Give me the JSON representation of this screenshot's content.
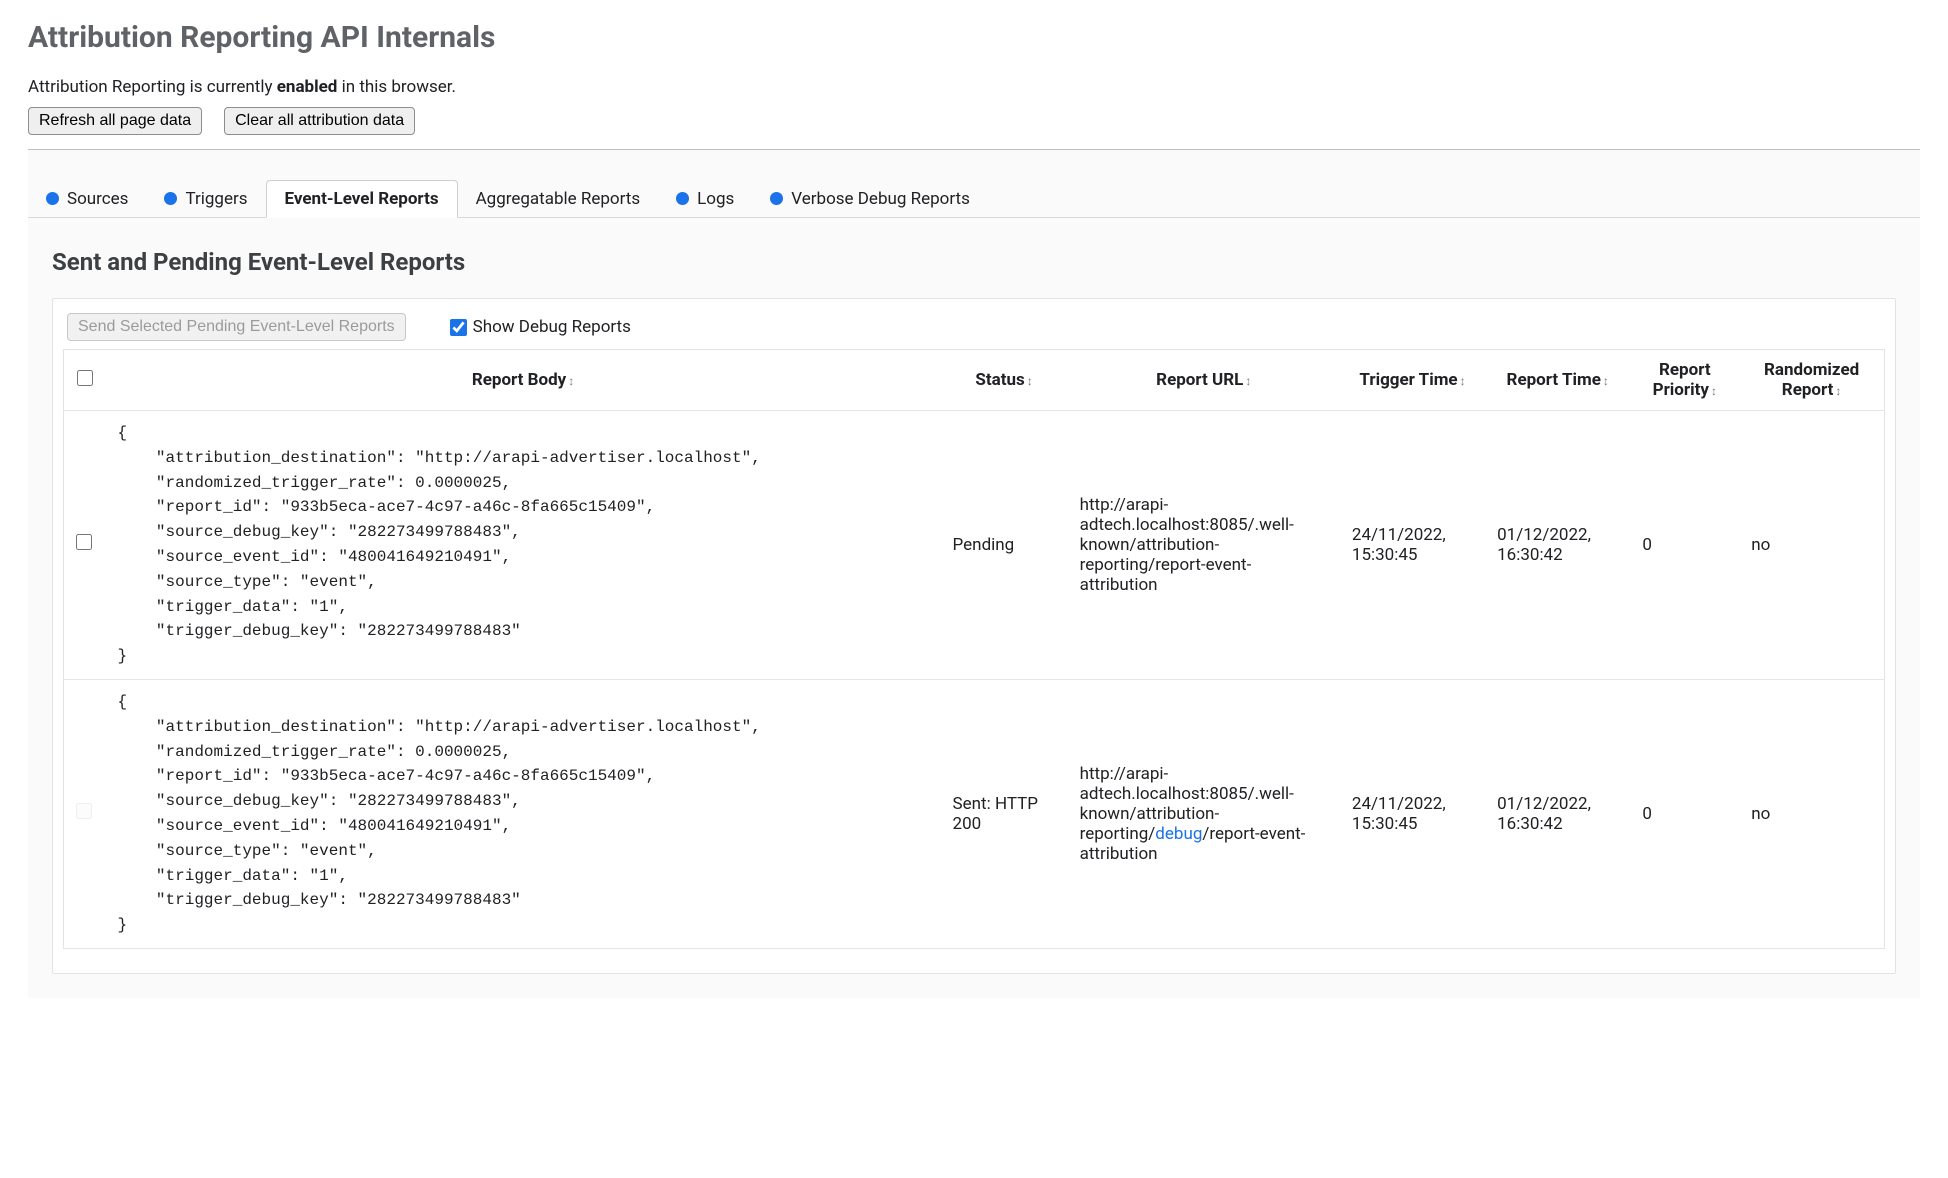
{
  "page": {
    "title": "Attribution Reporting API Internals",
    "status_prefix": "Attribution Reporting is currently ",
    "status_state": "enabled",
    "status_suffix": " in this browser.",
    "refresh_btn": "Refresh all page data",
    "clear_btn": "Clear all attribution data"
  },
  "tabs": {
    "sources": "Sources",
    "triggers": "Triggers",
    "event_reports": "Event-Level Reports",
    "agg_reports": "Aggregatable Reports",
    "logs": "Logs",
    "verbose": "Verbose Debug Reports"
  },
  "section_title": "Sent and Pending Event-Level Reports",
  "toolbar": {
    "send_selected": "Send Selected Pending Event-Level Reports",
    "show_debug": "Show Debug Reports"
  },
  "columns": {
    "body": "Report Body",
    "status": "Status",
    "url": "Report URL",
    "trigger_time": "Trigger Time",
    "report_time": "Report Time",
    "priority": "Report Priority",
    "randomized": "Randomized Report"
  },
  "report_body_text": "{\n    \"attribution_destination\": \"http://arapi-advertiser.localhost\",\n    \"randomized_trigger_rate\": 0.0000025,\n    \"report_id\": \"933b5eca-ace7-4c97-a46c-8fa665c15409\",\n    \"source_debug_key\": \"282273499788483\",\n    \"source_event_id\": \"480041649210491\",\n    \"source_type\": \"event\",\n    \"trigger_data\": \"1\",\n    \"trigger_debug_key\": \"282273499788483\"\n}",
  "rows": {
    "r0": {
      "status": "Pending",
      "url": "http://arapi-adtech.localhost:8085/.well-known/attribution-reporting/report-event-attribution",
      "trigger_time": "24/11/2022, 15:30:45",
      "report_time": "01/12/2022, 16:30:42",
      "priority": "0",
      "randomized": "no"
    },
    "r1": {
      "status": "Sent: HTTP 200",
      "url_pre": "http://arapi-adtech.localhost:8085/.well-known/attribution-reporting/",
      "url_debug": "debug",
      "url_post": "/report-event-attribution",
      "trigger_time": "24/11/2022, 15:30:45",
      "report_time": "01/12/2022, 16:30:42",
      "priority": "0",
      "randomized": "no"
    }
  },
  "colors": {
    "accent": "#1a73e8",
    "title": "#5f6368",
    "border": "#e3e3e3",
    "panel_bg": "#fafafa"
  }
}
